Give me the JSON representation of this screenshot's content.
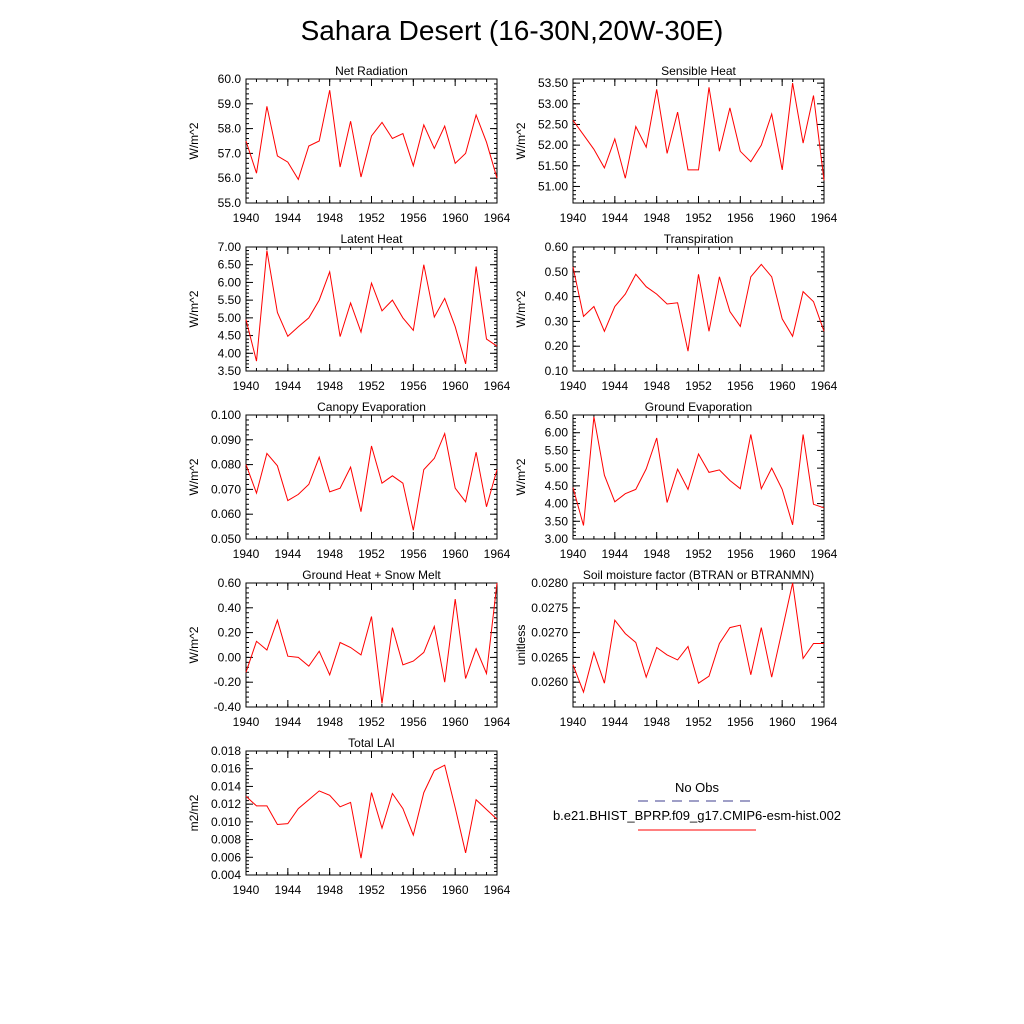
{
  "figure_title": "Sahara Desert (16-30N,20W-30E)",
  "colors": {
    "model_line": "#ff0000",
    "obs_line": "#3f3f8f",
    "axis": "#000000"
  },
  "legend": {
    "obs_label": "No Obs",
    "model_label": "b.e21.BHIST_BPRP.f09_g17.CMIP6-esm-hist.002"
  },
  "chart_data": [
    {
      "type": "line",
      "title": "Net Radiation",
      "ylabel": "W/m^2",
      "xlim": [
        1940,
        1964
      ],
      "ylim": [
        55.0,
        60.0
      ],
      "xticks": [
        1940,
        1944,
        1948,
        1952,
        1956,
        1960,
        1964
      ],
      "yticks": [
        55.0,
        56.0,
        57.0,
        58.0,
        59.0,
        60.0
      ],
      "ytick_labels": [
        "55.0",
        "56.0",
        "57.0",
        "58.0",
        "59.0",
        "60.0"
      ],
      "x": [
        1940,
        1941,
        1942,
        1943,
        1944,
        1945,
        1946,
        1947,
        1948,
        1949,
        1950,
        1951,
        1952,
        1953,
        1954,
        1955,
        1956,
        1957,
        1958,
        1959,
        1960,
        1961,
        1962,
        1963,
        1964
      ],
      "series": [
        {
          "values": [
            57.5,
            56.2,
            58.9,
            56.9,
            56.65,
            55.95,
            57.3,
            57.5,
            59.55,
            56.45,
            58.3,
            56.05,
            57.7,
            58.25,
            57.6,
            57.8,
            56.5,
            58.15,
            57.2,
            58.1,
            56.6,
            57.0,
            58.55,
            57.45,
            56.0
          ]
        }
      ]
    },
    {
      "type": "line",
      "title": "Sensible Heat",
      "ylabel": "W/m^2",
      "xlim": [
        1940,
        1964
      ],
      "ylim": [
        50.6,
        53.6
      ],
      "xticks": [
        1940,
        1944,
        1948,
        1952,
        1956,
        1960,
        1964
      ],
      "yticks": [
        51.0,
        51.5,
        52.0,
        52.5,
        53.0,
        53.5
      ],
      "ytick_labels": [
        "51.00",
        "51.50",
        "52.00",
        "52.50",
        "53.00",
        "53.50"
      ],
      "x": [
        1940,
        1941,
        1942,
        1943,
        1944,
        1945,
        1946,
        1947,
        1948,
        1949,
        1950,
        1951,
        1952,
        1953,
        1954,
        1955,
        1956,
        1957,
        1958,
        1959,
        1960,
        1961,
        1962,
        1963,
        1964
      ],
      "series": [
        {
          "values": [
            52.6,
            52.25,
            51.9,
            51.45,
            52.15,
            51.2,
            52.45,
            51.95,
            53.35,
            51.8,
            52.8,
            51.4,
            51.4,
            53.4,
            51.85,
            52.9,
            51.85,
            51.6,
            52.0,
            52.75,
            51.4,
            53.5,
            52.05,
            53.2,
            51.15
          ]
        }
      ]
    },
    {
      "type": "line",
      "title": "Latent Heat",
      "ylabel": "W/m^2",
      "xlim": [
        1940,
        1964
      ],
      "ylim": [
        3.5,
        7.0
      ],
      "xticks": [
        1940,
        1944,
        1948,
        1952,
        1956,
        1960,
        1964
      ],
      "yticks": [
        3.5,
        4.0,
        4.5,
        5.0,
        5.5,
        6.0,
        6.5,
        7.0
      ],
      "ytick_labels": [
        "3.50",
        "4.00",
        "4.50",
        "5.00",
        "5.50",
        "6.00",
        "6.50",
        "7.00"
      ],
      "x": [
        1940,
        1941,
        1942,
        1943,
        1944,
        1945,
        1946,
        1947,
        1948,
        1949,
        1950,
        1951,
        1952,
        1953,
        1954,
        1955,
        1956,
        1957,
        1958,
        1959,
        1960,
        1961,
        1962,
        1963,
        1964
      ],
      "series": [
        {
          "values": [
            4.95,
            3.78,
            6.9,
            5.15,
            4.48,
            4.75,
            5.0,
            5.5,
            6.3,
            4.47,
            5.42,
            4.6,
            5.98,
            5.2,
            5.5,
            5.0,
            4.65,
            6.5,
            5.02,
            5.55,
            4.75,
            3.7,
            6.45,
            4.4,
            4.2
          ]
        }
      ]
    },
    {
      "type": "line",
      "title": "Transpiration",
      "ylabel": "W/m^2",
      "xlim": [
        1940,
        1964
      ],
      "ylim": [
        0.1,
        0.6
      ],
      "xticks": [
        1940,
        1944,
        1948,
        1952,
        1956,
        1960,
        1964
      ],
      "yticks": [
        0.1,
        0.2,
        0.3,
        0.4,
        0.5,
        0.6
      ],
      "ytick_labels": [
        "0.10",
        "0.20",
        "0.30",
        "0.40",
        "0.50",
        "0.60"
      ],
      "x": [
        1940,
        1941,
        1942,
        1943,
        1944,
        1945,
        1946,
        1947,
        1948,
        1949,
        1950,
        1951,
        1952,
        1953,
        1954,
        1955,
        1956,
        1957,
        1958,
        1959,
        1960,
        1961,
        1962,
        1963,
        1964
      ],
      "series": [
        {
          "values": [
            0.52,
            0.32,
            0.36,
            0.26,
            0.36,
            0.41,
            0.49,
            0.44,
            0.41,
            0.37,
            0.375,
            0.18,
            0.49,
            0.26,
            0.48,
            0.34,
            0.28,
            0.48,
            0.53,
            0.48,
            0.31,
            0.24,
            0.42,
            0.38,
            0.26
          ]
        }
      ]
    },
    {
      "type": "line",
      "title": "Canopy Evaporation",
      "ylabel": "W/m^2",
      "xlim": [
        1940,
        1964
      ],
      "ylim": [
        0.05,
        0.1
      ],
      "xticks": [
        1940,
        1944,
        1948,
        1952,
        1956,
        1960,
        1964
      ],
      "yticks": [
        0.05,
        0.06,
        0.07,
        0.08,
        0.09,
        0.1
      ],
      "ytick_labels": [
        "0.050",
        "0.060",
        "0.070",
        "0.080",
        "0.090",
        "0.100"
      ],
      "x": [
        1940,
        1941,
        1942,
        1943,
        1944,
        1945,
        1946,
        1947,
        1948,
        1949,
        1950,
        1951,
        1952,
        1953,
        1954,
        1955,
        1956,
        1957,
        1958,
        1959,
        1960,
        1961,
        1962,
        1963,
        1964
      ],
      "series": [
        {
          "values": [
            0.08,
            0.0685,
            0.0845,
            0.0795,
            0.0655,
            0.068,
            0.072,
            0.083,
            0.069,
            0.0705,
            0.079,
            0.061,
            0.0875,
            0.0725,
            0.0755,
            0.0725,
            0.0535,
            0.078,
            0.0825,
            0.0925,
            0.0705,
            0.065,
            0.085,
            0.063,
            0.078
          ]
        }
      ]
    },
    {
      "type": "line",
      "title": "Ground Evaporation",
      "ylabel": "W/m^2",
      "xlim": [
        1940,
        1964
      ],
      "ylim": [
        3.0,
        6.5
      ],
      "xticks": [
        1940,
        1944,
        1948,
        1952,
        1956,
        1960,
        1964
      ],
      "yticks": [
        3.0,
        3.5,
        4.0,
        4.5,
        5.0,
        5.5,
        6.0,
        6.5
      ],
      "ytick_labels": [
        "3.00",
        "3.50",
        "4.00",
        "4.50",
        "5.00",
        "5.50",
        "6.00",
        "6.50"
      ],
      "x": [
        1940,
        1941,
        1942,
        1943,
        1944,
        1945,
        1946,
        1947,
        1948,
        1949,
        1950,
        1951,
        1952,
        1953,
        1954,
        1955,
        1956,
        1957,
        1958,
        1959,
        1960,
        1961,
        1962,
        1963,
        1964
      ],
      "series": [
        {
          "values": [
            4.45,
            3.38,
            6.45,
            4.8,
            4.05,
            4.28,
            4.4,
            4.98,
            5.85,
            4.03,
            4.97,
            4.4,
            5.4,
            4.88,
            4.95,
            4.65,
            4.42,
            5.95,
            4.42,
            5.0,
            4.4,
            3.4,
            5.95,
            3.98,
            3.88
          ]
        }
      ]
    },
    {
      "type": "line",
      "title": "Ground Heat + Snow Melt",
      "ylabel": "W/m^2",
      "xlim": [
        1940,
        1964
      ],
      "ylim": [
        -0.4,
        0.6
      ],
      "xticks": [
        1940,
        1944,
        1948,
        1952,
        1956,
        1960,
        1964
      ],
      "yticks": [
        -0.4,
        -0.2,
        0.0,
        0.2,
        0.4,
        0.6
      ],
      "ytick_labels": [
        "-0.40",
        "-0.20",
        "0.00",
        "0.20",
        "0.40",
        "0.60"
      ],
      "x": [
        1940,
        1941,
        1942,
        1943,
        1944,
        1945,
        1946,
        1947,
        1948,
        1949,
        1950,
        1951,
        1952,
        1953,
        1954,
        1955,
        1956,
        1957,
        1958,
        1959,
        1960,
        1961,
        1962,
        1963,
        1964
      ],
      "series": [
        {
          "values": [
            -0.12,
            0.13,
            0.06,
            0.3,
            0.01,
            0.0,
            -0.07,
            0.05,
            -0.14,
            0.12,
            0.08,
            0.02,
            0.33,
            -0.37,
            0.24,
            -0.06,
            -0.03,
            0.04,
            0.25,
            -0.2,
            0.47,
            -0.17,
            0.07,
            -0.13,
            0.6
          ]
        }
      ]
    },
    {
      "type": "line",
      "title": "Soil moisture factor (BTRAN or BTRANMN)",
      "ylabel": "unitless",
      "xlim": [
        1940,
        1964
      ],
      "ylim": [
        0.0255,
        0.028
      ],
      "xticks": [
        1940,
        1944,
        1948,
        1952,
        1956,
        1960,
        1964
      ],
      "yticks": [
        0.026,
        0.0265,
        0.027,
        0.0275,
        0.028
      ],
      "ytick_labels": [
        "0.0260",
        "0.0265",
        "0.0270",
        "0.0275",
        "0.0280"
      ],
      "x": [
        1940,
        1941,
        1942,
        1943,
        1944,
        1945,
        1946,
        1947,
        1948,
        1949,
        1950,
        1951,
        1952,
        1953,
        1954,
        1955,
        1956,
        1957,
        1958,
        1959,
        1960,
        1961,
        1962,
        1963,
        1964
      ],
      "series": [
        {
          "values": [
            0.02635,
            0.0258,
            0.0266,
            0.02598,
            0.02725,
            0.02698,
            0.0268,
            0.0261,
            0.0267,
            0.02655,
            0.02645,
            0.02672,
            0.02598,
            0.02612,
            0.02678,
            0.0271,
            0.02715,
            0.02615,
            0.0271,
            0.0261,
            0.02705,
            0.028,
            0.02648,
            0.02678,
            0.02678
          ]
        }
      ]
    },
    {
      "type": "line",
      "title": "Total LAI",
      "ylabel": "m2/m2",
      "xlim": [
        1940,
        1964
      ],
      "ylim": [
        0.004,
        0.018
      ],
      "xticks": [
        1940,
        1944,
        1948,
        1952,
        1956,
        1960,
        1964
      ],
      "yticks": [
        0.004,
        0.006,
        0.008,
        0.01,
        0.012,
        0.014,
        0.016,
        0.018
      ],
      "ytick_labels": [
        "0.004",
        "0.006",
        "0.008",
        "0.010",
        "0.012",
        "0.014",
        "0.016",
        "0.018"
      ],
      "x": [
        1940,
        1941,
        1942,
        1943,
        1944,
        1945,
        1946,
        1947,
        1948,
        1949,
        1950,
        1951,
        1952,
        1953,
        1954,
        1955,
        1956,
        1957,
        1958,
        1959,
        1960,
        1961,
        1962,
        1963,
        1964
      ],
      "series": [
        {
          "values": [
            0.0129,
            0.0118,
            0.0118,
            0.0097,
            0.0098,
            0.0115,
            0.0125,
            0.0135,
            0.013,
            0.0117,
            0.0122,
            0.0059,
            0.0133,
            0.0093,
            0.0132,
            0.0115,
            0.0085,
            0.0133,
            0.0158,
            0.0164,
            0.0116,
            0.0065,
            0.0125,
            0.0114,
            0.0103
          ]
        }
      ]
    }
  ]
}
